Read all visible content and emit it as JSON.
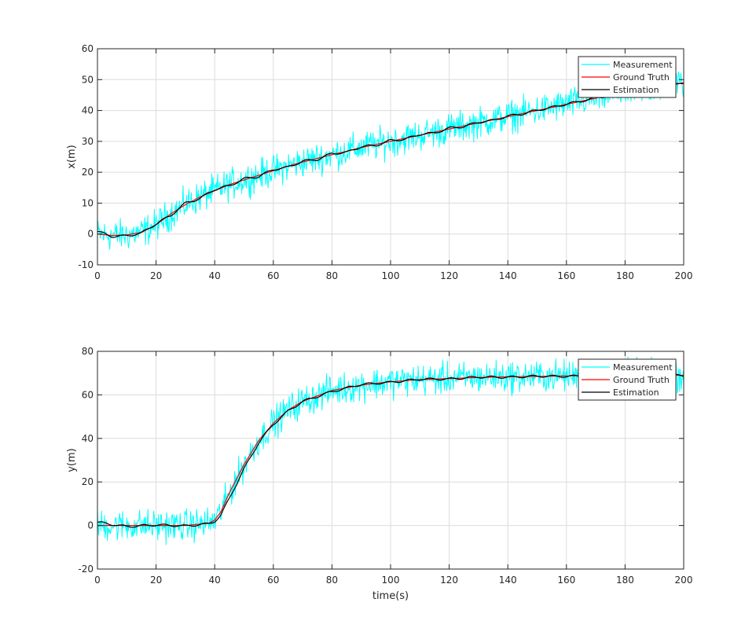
{
  "chart_data": [
    {
      "type": "line",
      "title": "",
      "xlabel": "",
      "ylabel": "x(m)",
      "xlim": [
        0,
        200
      ],
      "ylim": [
        -10,
        60
      ],
      "x_ticks": [
        0,
        20,
        40,
        60,
        80,
        100,
        120,
        140,
        160,
        180,
        200
      ],
      "y_ticks": [
        -10,
        0,
        10,
        20,
        30,
        40,
        50,
        60
      ],
      "grid": true,
      "legend_position": "top-right",
      "legend": [
        "Measurement",
        "Ground Truth",
        "Estimation"
      ],
      "noise_amplitude": 3.5,
      "series": [
        {
          "name": "Measurement",
          "color": "#00ffff",
          "x": [
            0,
            5,
            10,
            15,
            20,
            25,
            30,
            35,
            40,
            45,
            50,
            55,
            60,
            65,
            70,
            75,
            80,
            85,
            90,
            95,
            100,
            105,
            110,
            115,
            120,
            125,
            130,
            135,
            140,
            145,
            150,
            155,
            160,
            165,
            170,
            175,
            180,
            185,
            190,
            195,
            200
          ],
          "y": [
            0,
            -0.5,
            -0.3,
            0.5,
            3,
            6.5,
            9.5,
            12,
            14,
            16,
            17.5,
            19,
            20.5,
            22,
            23.3,
            24.5,
            25.7,
            26.8,
            28,
            29,
            30,
            31,
            32,
            33,
            34,
            35,
            36,
            37,
            38,
            39,
            40,
            41,
            42,
            43,
            44,
            45,
            46,
            47,
            47.5,
            48,
            49
          ]
        },
        {
          "name": "Ground Truth",
          "color": "#ff0000",
          "x": [
            0,
            5,
            10,
            15,
            20,
            25,
            30,
            35,
            40,
            45,
            50,
            55,
            60,
            65,
            70,
            75,
            80,
            85,
            90,
            95,
            100,
            105,
            110,
            115,
            120,
            125,
            130,
            135,
            140,
            145,
            150,
            155,
            160,
            165,
            170,
            175,
            180,
            185,
            190,
            195,
            200
          ],
          "y": [
            0,
            -0.5,
            -0.3,
            0.5,
            3,
            6.5,
            9.5,
            12,
            14,
            16,
            17.5,
            19,
            20.5,
            22,
            23.3,
            24.5,
            25.7,
            26.8,
            28,
            29,
            30,
            31,
            32,
            33,
            34,
            35,
            36,
            37,
            38,
            39,
            40,
            41,
            42,
            43,
            44,
            45,
            46,
            47,
            47.5,
            48,
            49
          ]
        },
        {
          "name": "Estimation",
          "color": "#000000",
          "x": [
            0,
            5,
            10,
            15,
            20,
            25,
            30,
            35,
            40,
            45,
            50,
            55,
            60,
            65,
            70,
            75,
            80,
            85,
            90,
            95,
            100,
            105,
            110,
            115,
            120,
            125,
            130,
            135,
            140,
            145,
            150,
            155,
            160,
            165,
            170,
            175,
            180,
            185,
            190,
            195,
            200
          ],
          "y": [
            0.8,
            -0.8,
            -0.6,
            0.3,
            3.3,
            6.0,
            10.0,
            11.5,
            14.5,
            15.6,
            17.9,
            18.6,
            20.9,
            21.6,
            23.6,
            24.1,
            26.1,
            26.4,
            28.3,
            28.7,
            30.3,
            30.7,
            32.3,
            32.7,
            34.3,
            34.8,
            36.2,
            36.8,
            38.2,
            38.9,
            40.1,
            41.0,
            42.1,
            43.0,
            44.1,
            44.8,
            46.1,
            46.8,
            47.6,
            47.7,
            49.0
          ]
        }
      ]
    },
    {
      "type": "line",
      "title": "",
      "xlabel": "time(s)",
      "ylabel": "y(m)",
      "xlim": [
        0,
        200
      ],
      "ylim": [
        -20,
        80
      ],
      "x_ticks": [
        0,
        20,
        40,
        60,
        80,
        100,
        120,
        140,
        160,
        180,
        200
      ],
      "y_ticks": [
        -20,
        0,
        20,
        40,
        60,
        80
      ],
      "grid": true,
      "legend_position": "top-right",
      "legend": [
        "Measurement",
        "Ground Truth",
        "Estimation"
      ],
      "noise_amplitude": 5,
      "series": [
        {
          "name": "Measurement",
          "color": "#00ffff",
          "x": [
            0,
            10,
            20,
            30,
            38,
            40,
            42,
            45,
            50,
            55,
            60,
            65,
            70,
            80,
            90,
            100,
            110,
            120,
            130,
            140,
            150,
            160,
            170,
            180,
            190,
            200
          ],
          "y": [
            0,
            0,
            0,
            0,
            1,
            2.5,
            6,
            15,
            28,
            39,
            47,
            53,
            57,
            62,
            64.5,
            66,
            67,
            67.5,
            68,
            68.3,
            68.5,
            68.7,
            68.8,
            69,
            69,
            69
          ]
        },
        {
          "name": "Ground Truth",
          "color": "#ff0000",
          "x": [
            0,
            10,
            20,
            30,
            38,
            40,
            42,
            45,
            50,
            55,
            60,
            65,
            70,
            80,
            90,
            100,
            110,
            120,
            130,
            140,
            150,
            160,
            170,
            180,
            190,
            200
          ],
          "y": [
            0,
            0,
            0,
            0,
            1,
            2.5,
            6,
            15,
            28,
            39,
            47,
            53,
            57,
            62,
            64.5,
            66,
            67,
            67.5,
            68,
            68.3,
            68.5,
            68.7,
            68.8,
            69,
            69,
            69
          ]
        },
        {
          "name": "Estimation",
          "color": "#000000",
          "x": [
            0,
            10,
            20,
            30,
            38,
            40,
            42,
            45,
            50,
            55,
            60,
            65,
            70,
            80,
            90,
            100,
            110,
            120,
            130,
            140,
            150,
            160,
            170,
            180,
            190,
            200
          ],
          "y": [
            1.5,
            -0.5,
            0.3,
            -0.2,
            0.8,
            2.0,
            4.5,
            12.5,
            26,
            38,
            46.5,
            52.5,
            57,
            61.5,
            64.8,
            65.8,
            67.2,
            67.3,
            68.2,
            68.1,
            68.6,
            68.5,
            68.9,
            68.8,
            69.1,
            68.9
          ]
        }
      ]
    }
  ]
}
